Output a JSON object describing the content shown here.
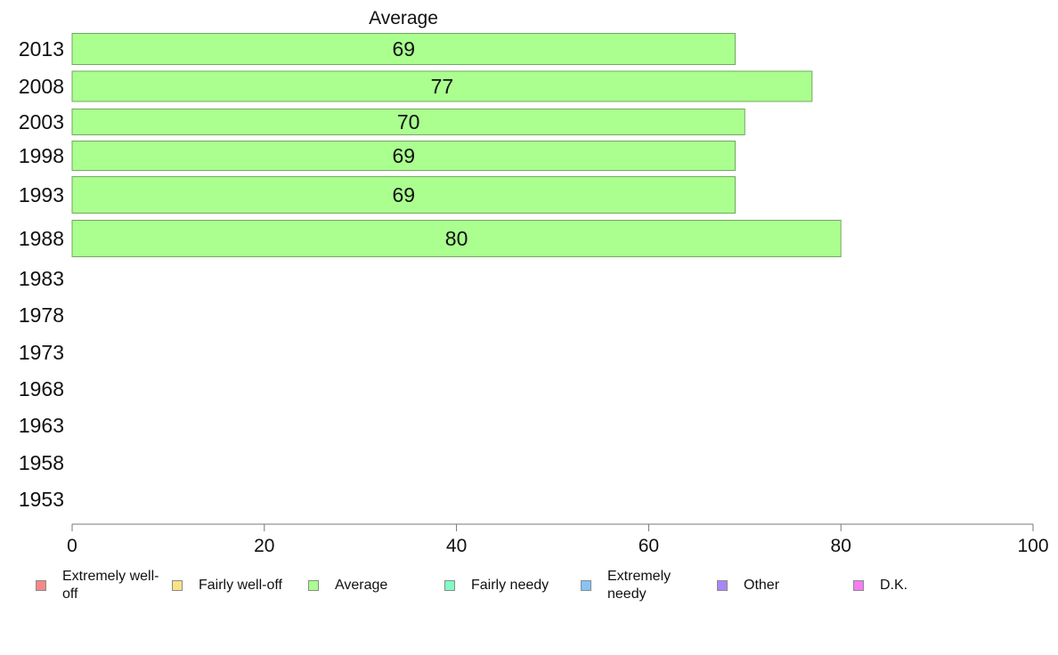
{
  "chart_data": {
    "type": "bar",
    "orientation": "horizontal",
    "title": "Average",
    "categories": [
      "2013",
      "2008",
      "2003",
      "1998",
      "1993",
      "1988",
      "1983",
      "1978",
      "1973",
      "1968",
      "1963",
      "1958",
      "1953"
    ],
    "series": [
      {
        "name": "Extremely well-off",
        "color": "#f88888",
        "values": [
          null,
          null,
          null,
          null,
          null,
          null,
          null,
          null,
          null,
          null,
          null,
          null,
          null
        ]
      },
      {
        "name": "Fairly well-off",
        "color": "#fbe286",
        "values": [
          null,
          null,
          null,
          null,
          null,
          null,
          null,
          null,
          null,
          null,
          null,
          null,
          null
        ]
      },
      {
        "name": "Average",
        "color": "#aaff8f",
        "values": [
          69,
          77,
          70,
          69,
          69,
          80,
          null,
          null,
          null,
          null,
          null,
          null,
          null
        ]
      },
      {
        "name": "Fairly needy",
        "color": "#82fbc6",
        "values": [
          null,
          null,
          null,
          null,
          null,
          null,
          null,
          null,
          null,
          null,
          null,
          null,
          null
        ]
      },
      {
        "name": "Extremely needy",
        "color": "#86c4f8",
        "values": [
          null,
          null,
          null,
          null,
          null,
          null,
          null,
          null,
          null,
          null,
          null,
          null,
          null
        ]
      },
      {
        "name": "Other",
        "color": "#a787f8",
        "values": [
          null,
          null,
          null,
          null,
          null,
          null,
          null,
          null,
          null,
          null,
          null,
          null,
          null
        ]
      },
      {
        "name": "D.K.",
        "color": "#f57cf2",
        "values": [
          null,
          null,
          null,
          null,
          null,
          null,
          null,
          null,
          null,
          null,
          null,
          null,
          null
        ]
      }
    ],
    "xlim": [
      0,
      100
    ],
    "xticks": [
      0,
      20,
      40,
      60,
      80,
      100
    ],
    "grid": false,
    "legend_position": "bottom"
  }
}
